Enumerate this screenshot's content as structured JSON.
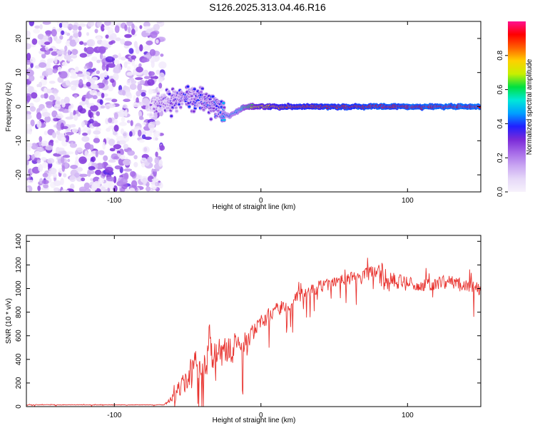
{
  "title": "S126.2025.313.04.46.R16",
  "colors": {
    "snr_line": "#e8322e",
    "axis": "#000000",
    "background": "#ffffff",
    "colormap": [
      "#f7f2fc",
      "#e6d8f8",
      "#c9a6f2",
      "#a66ae8",
      "#7a2ad8",
      "#2020ff",
      "#00a0ff",
      "#00e8d8",
      "#00e040",
      "#c8f000",
      "#ffd000",
      "#ff6000",
      "#ff0000",
      "#ff1090"
    ]
  },
  "chart_data": [
    {
      "type": "heatmap",
      "title": "S126.2025.313.04.46.R16",
      "xlabel": "Height of straight line (km)",
      "ylabel": "Frequency (Hz)",
      "xlim": [
        -160,
        150
      ],
      "ylim": [
        -25,
        25
      ],
      "xticks": [
        -100,
        0,
        100
      ],
      "yticks": [
        -20,
        -10,
        0,
        10,
        20
      ],
      "noise_region_x": [
        -160,
        -75
      ],
      "signal_band_freq_hz": 0,
      "signal_profile": [
        {
          "x": -75,
          "amp": 0.15,
          "dfreq": 0
        },
        {
          "x": -70,
          "amp": 0.22,
          "dfreq": 0.5
        },
        {
          "x": -60,
          "amp": 0.25,
          "dfreq": 2
        },
        {
          "x": -50,
          "amp": 0.28,
          "dfreq": 3
        },
        {
          "x": -40,
          "amp": 0.3,
          "dfreq": 2
        },
        {
          "x": -30,
          "amp": 0.35,
          "dfreq": 0
        },
        {
          "x": -22,
          "amp": 0.4,
          "dfreq": -3
        },
        {
          "x": -15,
          "amp": 0.45,
          "dfreq": -1
        },
        {
          "x": -10,
          "amp": 0.6,
          "dfreq": 0
        },
        {
          "x": 0,
          "amp": 0.75,
          "dfreq": 0
        },
        {
          "x": 20,
          "amp": 0.85,
          "dfreq": 0
        },
        {
          "x": 60,
          "amp": 0.9,
          "dfreq": 0
        },
        {
          "x": 90,
          "amp": 0.92,
          "dfreq": 0
        },
        {
          "x": 150,
          "amp": 0.95,
          "dfreq": 0
        }
      ]
    },
    {
      "type": "colorbar",
      "label": "Normalized spectral amplitude",
      "range": [
        0,
        1
      ],
      "ticks": [
        0.0,
        0.2,
        0.4,
        0.6,
        0.8
      ],
      "tick_labels": [
        "0.0",
        "0.2",
        "0.4",
        "0.6",
        "0.8"
      ]
    },
    {
      "type": "line",
      "xlabel": "Height of straight line (km)",
      "ylabel": "SNR (10 * v/v)",
      "xlim": [
        -160,
        150
      ],
      "ylim": [
        0,
        1450
      ],
      "xticks": [
        -100,
        0,
        100
      ],
      "yticks": [
        0,
        200,
        400,
        600,
        800,
        1000,
        1200,
        1400
      ],
      "series": [
        {
          "name": "SNR",
          "x": [
            -160,
            -140,
            -120,
            -100,
            -80,
            -66,
            -60,
            -50,
            -40,
            -35,
            -30,
            -20,
            -10,
            0,
            10,
            20,
            30,
            40,
            50,
            60,
            70,
            80,
            82,
            90,
            100,
            110,
            120,
            130,
            140,
            150
          ],
          "y": [
            15,
            15,
            15,
            15,
            15,
            15,
            80,
            250,
            400,
            450,
            430,
            480,
            560,
            700,
            820,
            880,
            960,
            1020,
            1060,
            1080,
            1100,
            1150,
            1100,
            1060,
            1040,
            1030,
            1040,
            1060,
            1030,
            980
          ],
          "noise_amplitude": [
            4,
            4,
            4,
            4,
            4,
            4,
            60,
            180,
            250,
            260,
            230,
            180,
            140,
            110,
            100,
            100,
            90,
            85,
            85,
            90,
            100,
            130,
            250,
            120,
            100,
            90,
            90,
            90,
            90,
            90
          ]
        }
      ]
    }
  ]
}
